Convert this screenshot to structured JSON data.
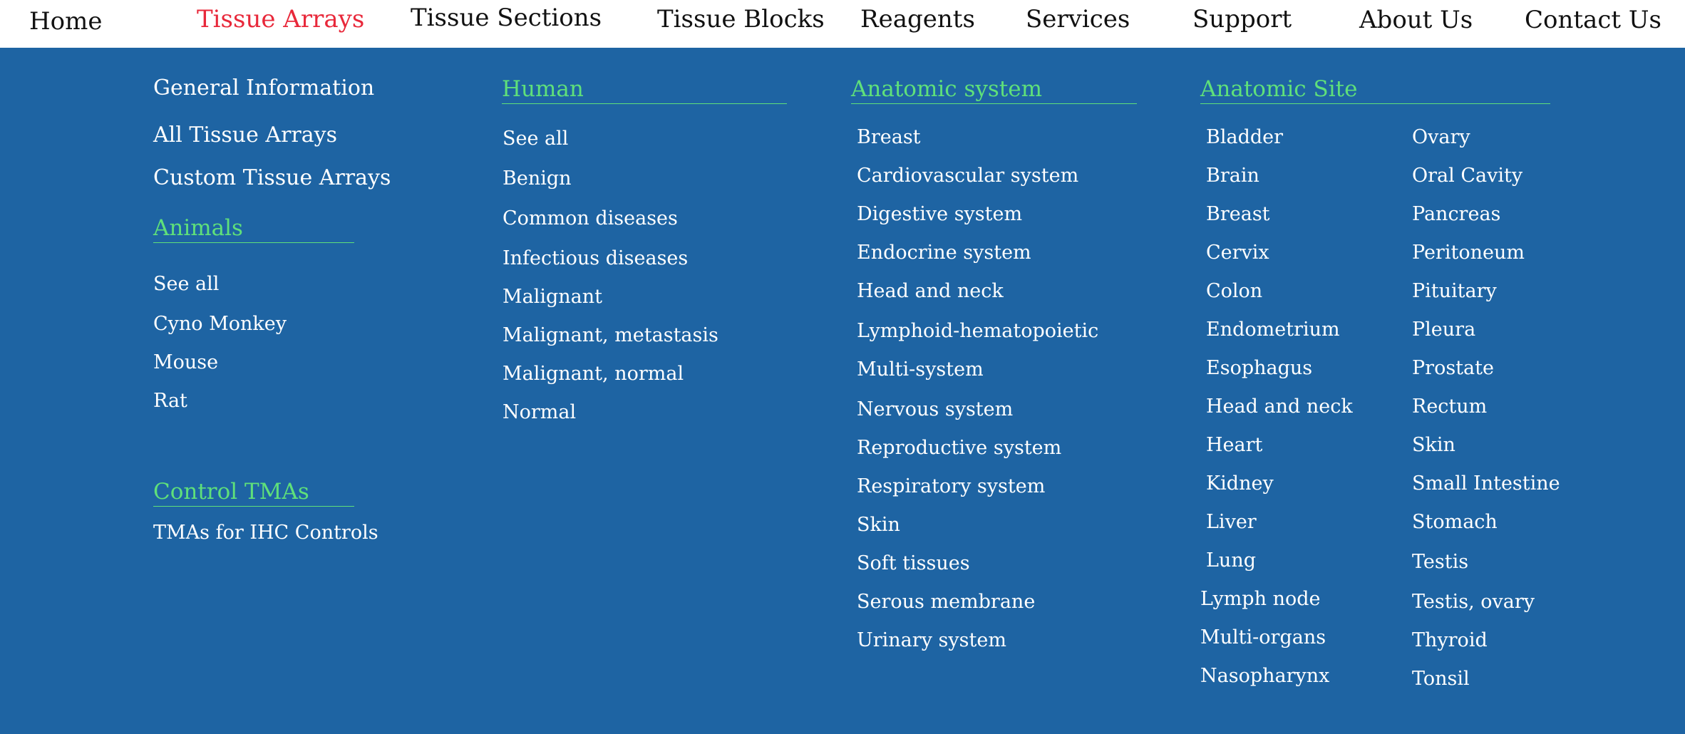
{
  "nav": {
    "home": "Home",
    "tissue_arrays": "Tissue Arrays",
    "tissue_sections": "Tissue Sections",
    "tissue_blocks": "Tissue Blocks",
    "reagents": "Reagents",
    "services": "Services",
    "support": "Support",
    "about_us": "About Us",
    "contact_us": "Contact Us",
    "active_color": "#e8283a"
  },
  "menu": {
    "general": {
      "title": "General Information",
      "all_tissue_arrays": "All Tissue Arrays",
      "custom_tissue_arrays": "Custom Tissue Arrays"
    },
    "animals": {
      "heading": "Animals",
      "items": [
        "See all",
        "Cyno Monkey",
        "Mouse",
        "Rat"
      ]
    },
    "control": {
      "heading": "Control TMAs",
      "items": [
        "TMAs for IHC Controls"
      ]
    },
    "human": {
      "heading": "Human",
      "items": [
        "See all",
        "Benign",
        "Common diseases",
        "Infectious diseases",
        "Malignant",
        "Malignant, metastasis",
        "Malignant, normal",
        "Normal"
      ]
    },
    "anatomic_system": {
      "heading": "Anatomic system",
      "items": [
        "Breast",
        "Cardiovascular system",
        "Digestive system",
        "Endocrine system",
        "Head and neck",
        "Lymphoid-hematopoietic",
        "Multi-system",
        "Nervous system",
        "Reproductive system",
        "Respiratory system",
        "Skin",
        "Soft tissues",
        "Serous membrane",
        "Urinary system"
      ]
    },
    "anatomic_site": {
      "heading": "Anatomic Site",
      "col1": [
        "Bladder",
        "Brain",
        "Breast",
        "Cervix",
        "Colon",
        "Endometrium",
        "Esophagus",
        "Head and neck",
        "Heart",
        "Kidney",
        "Liver",
        "Lung",
        "Lymph node",
        "Multi-organs",
        "Nasopharynx"
      ],
      "col2": [
        "Ovary",
        "Oral Cavity",
        "Pancreas",
        "Peritoneum",
        "Pituitary",
        "Pleura",
        "Prostate",
        "Rectum",
        "Skin",
        "Small Intestine",
        "Stomach",
        "Testis",
        "Testis, ovary",
        "Thyroid",
        "Tonsil"
      ]
    },
    "colors": {
      "panel_background": "#1e64a3",
      "heading_green": "#5fe07a",
      "link_white": "#ffffff"
    }
  }
}
